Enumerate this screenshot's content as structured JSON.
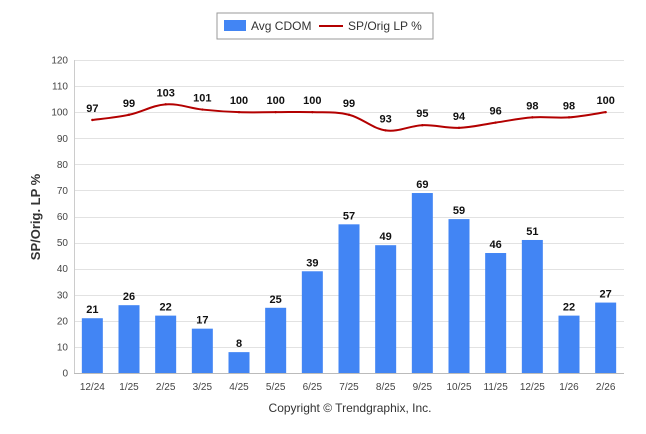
{
  "chart_data": {
    "type": "bar+line",
    "categories": [
      "12/24",
      "1/25",
      "2/25",
      "3/25",
      "4/25",
      "5/25",
      "6/25",
      "7/25",
      "8/25",
      "9/25",
      "10/25",
      "11/25",
      "12/25",
      "1/26",
      "2/26"
    ],
    "series": [
      {
        "name": "Avg CDOM",
        "type": "bar",
        "color": "#4285f4",
        "values": [
          21,
          26,
          22,
          17,
          8,
          25,
          39,
          57,
          49,
          69,
          59,
          46,
          51,
          22,
          27
        ]
      },
      {
        "name": "SP/Orig LP %",
        "type": "line",
        "color": "#b30000",
        "values": [
          97,
          99,
          103,
          101,
          100,
          100,
          100,
          99,
          93,
          95,
          94,
          96,
          98,
          98,
          100
        ]
      }
    ],
    "ylabel": "SP/Orig. LP %",
    "xlabel": "",
    "ylim": [
      0,
      120
    ],
    "yticks": [
      0,
      10,
      20,
      30,
      40,
      50,
      60,
      70,
      80,
      90,
      100,
      110,
      120
    ],
    "grid": true,
    "legend_position": "top-center"
  },
  "footer": {
    "copyright": "Copyright © Trendgraphix, Inc."
  }
}
